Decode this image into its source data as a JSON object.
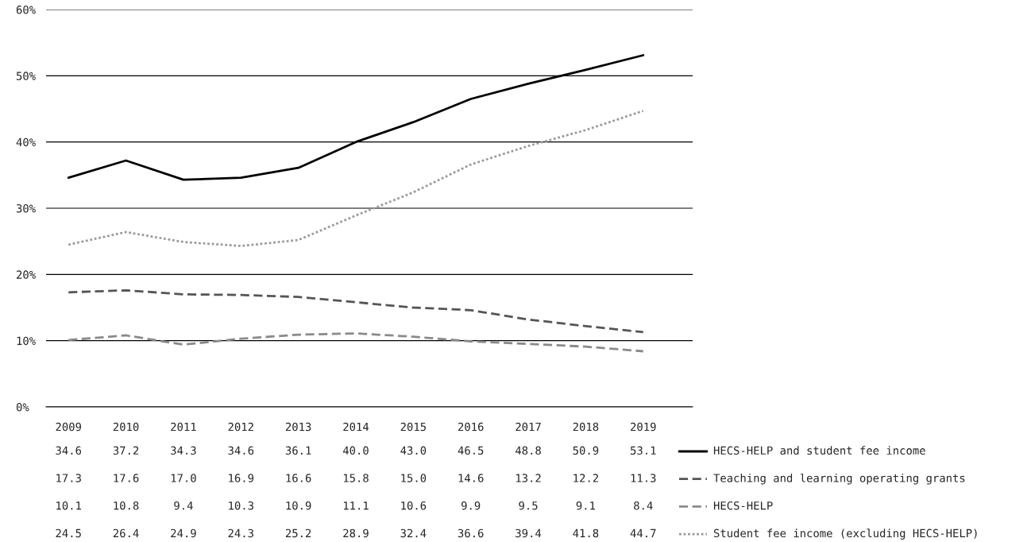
{
  "chart_data": {
    "type": "line",
    "categories": [
      "2009",
      "2010",
      "2011",
      "2012",
      "2013",
      "2014",
      "2015",
      "2016",
      "2017",
      "2018",
      "2019"
    ],
    "series": [
      {
        "name": "HECS-HELP and student fee income",
        "color": "#000000",
        "line_style": "solid",
        "values": [
          34.6,
          37.2,
          34.3,
          34.6,
          36.1,
          40.0,
          43.0,
          46.5,
          48.8,
          50.9,
          53.1
        ],
        "value_labels": [
          "34.6",
          "37.2",
          "34.3",
          "34.6",
          "36.1",
          "40.0",
          "43.0",
          "46.5",
          "48.8",
          "50.9",
          "53.1"
        ]
      },
      {
        "name": "Teaching and learning operating grants",
        "color": "#555555",
        "line_style": "dashed",
        "values": [
          17.3,
          17.6,
          17.0,
          16.9,
          16.6,
          15.8,
          15.0,
          14.6,
          13.2,
          12.2,
          11.3
        ],
        "value_labels": [
          "17.3",
          "17.6",
          "17.0",
          "16.9",
          "16.6",
          "15.8",
          "15.0",
          "14.6",
          "13.2",
          "12.2",
          "11.3"
        ]
      },
      {
        "name": "HECS-HELP",
        "color": "#8a8a8a",
        "line_style": "dashed",
        "values": [
          10.1,
          10.8,
          9.4,
          10.3,
          10.9,
          11.1,
          10.6,
          9.9,
          9.5,
          9.1,
          8.4
        ],
        "value_labels": [
          "10.1",
          "10.8",
          "9.4",
          "10.3",
          "10.9",
          "11.1",
          "10.6",
          "9.9",
          "9.5",
          "9.1",
          "8.4"
        ]
      },
      {
        "name": "Student fee income (excluding HECS-HELP)",
        "color": "#9a9a9a",
        "line_style": "dotted",
        "values": [
          24.5,
          26.4,
          24.9,
          24.3,
          25.2,
          28.9,
          32.4,
          36.6,
          39.4,
          41.8,
          44.7
        ],
        "value_labels": [
          "24.5",
          "26.4",
          "24.9",
          "24.3",
          "25.2",
          "28.9",
          "32.4",
          "36.6",
          "39.4",
          "41.8",
          "44.7"
        ]
      }
    ],
    "ylim": [
      0,
      60
    ],
    "yticks": [
      {
        "value": 0,
        "label": "0%"
      },
      {
        "value": 10,
        "label": "10%"
      },
      {
        "value": 20,
        "label": "20%"
      },
      {
        "value": 30,
        "label": "30%"
      },
      {
        "value": 40,
        "label": "40%"
      },
      {
        "value": 50,
        "label": "50%"
      },
      {
        "value": 60,
        "label": "60%"
      }
    ],
    "grid": "y",
    "legend": "right",
    "marker": "none"
  }
}
